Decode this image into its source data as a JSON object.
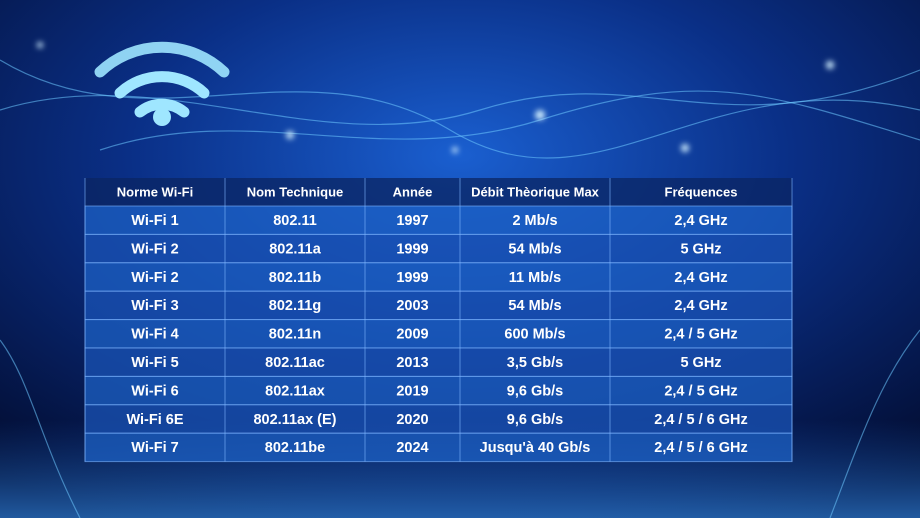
{
  "table": {
    "headers": [
      "Norme Wi-Fi",
      "Nom Technique",
      "Année",
      "Débit Thèorique Max",
      "Fréquences"
    ],
    "rows": [
      [
        "Wi-Fi 1",
        "802.11",
        "1997",
        "2 Mb/s",
        "2,4 GHz"
      ],
      [
        "Wi-Fi 2",
        "802.11a",
        "1999",
        "54 Mb/s",
        "5 GHz"
      ],
      [
        "Wi-Fi 2",
        "802.11b",
        "1999",
        "11 Mb/s",
        "2,4 GHz"
      ],
      [
        "Wi-Fi 3",
        "802.11g",
        "2003",
        "54 Mb/s",
        "2,4 GHz"
      ],
      [
        "Wi-Fi 4",
        "802.11n",
        "2009",
        "600 Mb/s",
        "2,4 / 5 GHz"
      ],
      [
        "Wi-Fi 5",
        "802.11ac",
        "2013",
        "3,5 Gb/s",
        "5 GHz"
      ],
      [
        "Wi-Fi 6",
        "802.11ax",
        "2019",
        "9,6 Gb/s",
        "2,4 / 5 GHz"
      ],
      [
        "Wi-Fi 6E",
        "802.11ax (E)",
        "2020",
        "9,6 Gb/s",
        "2,4 / 5 / 6 GHz"
      ],
      [
        "Wi-Fi 7",
        "802.11be",
        "2024",
        "Jusqu'à 40 Gb/s",
        "2,4 / 5 / 6 GHz"
      ]
    ]
  }
}
